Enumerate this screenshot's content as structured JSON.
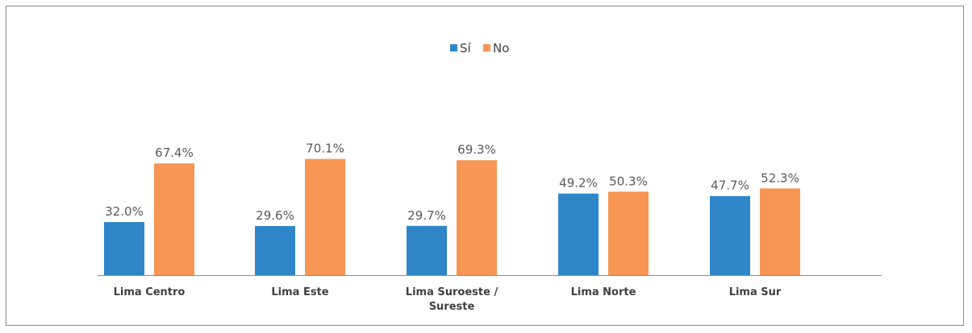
{
  "colors": {
    "si": "#2e86c8",
    "no": "#f79553",
    "axis": "#8c8c8c",
    "frame": "#8c8c8c"
  },
  "chart_data": {
    "type": "bar",
    "title": "",
    "xlabel": "",
    "ylabel": "",
    "ylim": [
      0,
      80
    ],
    "grid": false,
    "legend_position": "top-center",
    "categories": [
      [
        "Lima Centro"
      ],
      [
        "Lima Este"
      ],
      [
        "Lima Suroeste /",
        "Sureste"
      ],
      [
        "Lima Norte"
      ],
      [
        "Lima Sur"
      ]
    ],
    "series": [
      {
        "name": "Sí",
        "color": "#2e86c8",
        "values": [
          32.0,
          29.6,
          29.7,
          49.2,
          47.7
        ],
        "labels": [
          "32.0%",
          "29.6%",
          "29.7%",
          "49.2%",
          "47.7%"
        ]
      },
      {
        "name": "No",
        "color": "#f79553",
        "values": [
          67.4,
          70.1,
          69.3,
          50.3,
          52.3
        ],
        "labels": [
          "67.4%",
          "70.1%",
          "69.3%",
          "50.3%",
          "52.3%"
        ]
      }
    ]
  }
}
